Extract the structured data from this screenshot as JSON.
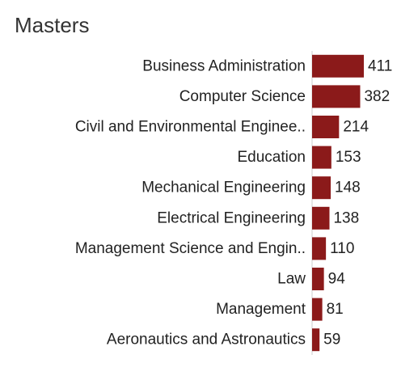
{
  "chart_data": {
    "type": "bar",
    "orientation": "horizontal",
    "title": "Masters",
    "categories": [
      "Business Administration",
      "Computer Science",
      "Civil and Environmental Enginee..",
      "Education",
      "Mechanical Engineering",
      "Electrical Engineering",
      "Management Science and Engin..",
      "Law",
      "Management",
      "Aeronautics and Astronautics"
    ],
    "values": [
      411,
      382,
      214,
      153,
      148,
      138,
      110,
      94,
      81,
      59
    ],
    "xlim": [
      0,
      411
    ],
    "grid": false,
    "legend": "none",
    "colors": {
      "bar": "#8b1a1a",
      "axis": "#cccccc",
      "label": "#222222",
      "title": "#333333"
    }
  }
}
